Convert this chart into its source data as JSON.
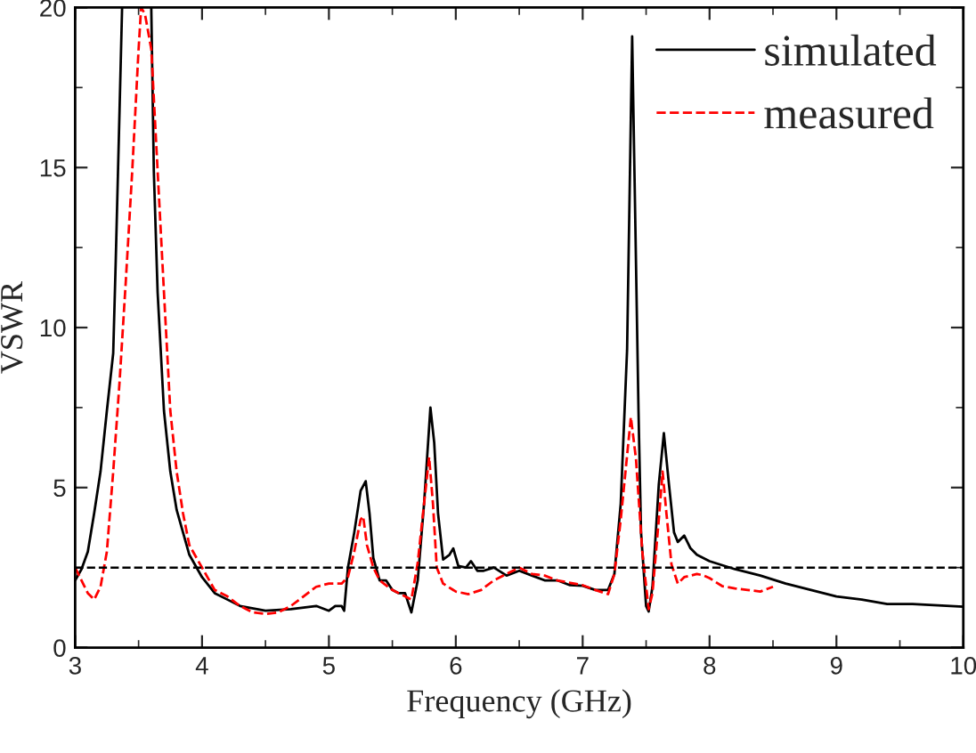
{
  "chart_data": {
    "type": "line",
    "xlabel": "Frequency (GHz)",
    "ylabel": "VSWR",
    "xlim": [
      3,
      10
    ],
    "ylim": [
      0,
      20
    ],
    "xticks": [
      3,
      4,
      5,
      6,
      7,
      8,
      9,
      10
    ],
    "yticks": [
      0,
      5,
      10,
      15,
      20
    ],
    "legend": "top right",
    "grid": false,
    "ref_lines": [
      {
        "axis": "y",
        "value": 2.5,
        "color": "#000000",
        "line_style": "dashed"
      }
    ],
    "series": [
      {
        "name": "simulated",
        "color": "#000000",
        "line_style": "solid",
        "x": [
          3.0,
          3.05,
          3.1,
          3.15,
          3.2,
          3.25,
          3.3,
          3.32,
          3.35,
          3.37,
          3.5,
          3.6,
          3.62,
          3.65,
          3.7,
          3.75,
          3.8,
          3.85,
          3.9,
          4.0,
          4.1,
          4.2,
          4.3,
          4.5,
          4.7,
          4.9,
          5.0,
          5.05,
          5.1,
          5.12,
          5.15,
          5.2,
          5.25,
          5.29,
          5.32,
          5.35,
          5.4,
          5.45,
          5.5,
          5.55,
          5.6,
          5.65,
          5.7,
          5.75,
          5.8,
          5.83,
          5.86,
          5.9,
          5.95,
          5.98,
          6.02,
          6.08,
          6.12,
          6.17,
          6.22,
          6.3,
          6.4,
          6.5,
          6.6,
          6.7,
          6.8,
          6.9,
          7.0,
          7.1,
          7.2,
          7.25,
          7.3,
          7.35,
          7.39,
          7.44,
          7.46,
          7.5,
          7.52,
          7.55,
          7.6,
          7.64,
          7.68,
          7.72,
          7.75,
          7.8,
          7.85,
          7.9,
          8.0,
          8.2,
          8.4,
          8.6,
          8.8,
          9.0,
          9.2,
          9.4,
          9.6,
          9.8,
          10.0
        ],
        "values": [
          2.1,
          2.45,
          3.0,
          4.2,
          5.5,
          7.4,
          9.2,
          12.1,
          16.8,
          20,
          null,
          20,
          14.9,
          11.1,
          7.4,
          5.5,
          4.3,
          3.6,
          2.9,
          2.2,
          1.7,
          1.5,
          1.3,
          1.15,
          1.2,
          1.3,
          1.15,
          1.3,
          1.3,
          1.15,
          2.5,
          3.6,
          4.9,
          5.2,
          4.2,
          2.8,
          2.1,
          2.1,
          1.8,
          1.7,
          1.7,
          1.1,
          2.1,
          4.5,
          7.5,
          6.4,
          4.2,
          2.75,
          2.9,
          3.1,
          2.55,
          2.5,
          2.7,
          2.4,
          2.4,
          2.5,
          2.25,
          2.4,
          2.25,
          2.1,
          2.1,
          1.95,
          1.93,
          1.8,
          1.8,
          2.3,
          4.5,
          9.3,
          19.1,
          7.4,
          3.6,
          1.3,
          1.13,
          1.9,
          5.1,
          6.7,
          5.1,
          3.6,
          3.3,
          3.5,
          3.1,
          2.9,
          2.7,
          2.45,
          2.25,
          2.0,
          1.8,
          1.6,
          1.5,
          1.36,
          1.36,
          1.32,
          1.28
        ]
      },
      {
        "name": "measured",
        "color": "#ff0000",
        "line_style": "dashed",
        "x": [
          3.0,
          3.05,
          3.1,
          3.15,
          3.2,
          3.25,
          3.3,
          3.35,
          3.4,
          3.45,
          3.5,
          3.52,
          3.55,
          3.6,
          3.65,
          3.7,
          3.75,
          3.8,
          3.85,
          3.9,
          4.0,
          4.1,
          4.2,
          4.3,
          4.4,
          4.5,
          4.6,
          4.7,
          4.8,
          4.9,
          5.0,
          5.1,
          5.15,
          5.2,
          5.25,
          5.27,
          5.3,
          5.35,
          5.4,
          5.5,
          5.6,
          5.65,
          5.7,
          5.75,
          5.79,
          5.82,
          5.85,
          5.9,
          6.0,
          6.1,
          6.2,
          6.3,
          6.4,
          6.5,
          6.6,
          6.7,
          6.8,
          7.0,
          7.1,
          7.2,
          7.25,
          7.3,
          7.38,
          7.42,
          7.47,
          7.52,
          7.55,
          7.6,
          7.63,
          7.66,
          7.7,
          7.75,
          7.8,
          7.9,
          7.95,
          8.0,
          8.1,
          8.2,
          8.3,
          8.4,
          8.5
        ],
        "values": [
          2.5,
          2.1,
          1.7,
          1.5,
          1.9,
          3.0,
          5.5,
          8.3,
          11.5,
          14.9,
          18.7,
          20,
          19.8,
          18.7,
          14.9,
          11.1,
          7.4,
          5.5,
          4.2,
          3.2,
          2.5,
          1.8,
          1.6,
          1.3,
          1.1,
          1.05,
          1.1,
          1.3,
          1.6,
          1.9,
          2.0,
          2.0,
          2.2,
          3.0,
          4.0,
          4.1,
          3.2,
          2.5,
          2.1,
          1.8,
          1.6,
          1.5,
          2.65,
          4.5,
          5.95,
          4.5,
          2.5,
          2.0,
          1.75,
          1.67,
          1.8,
          2.1,
          2.3,
          2.5,
          2.3,
          2.25,
          2.1,
          1.95,
          1.8,
          1.67,
          2.3,
          4.0,
          7.2,
          5.9,
          3.0,
          1.2,
          1.7,
          4.0,
          5.5,
          4.2,
          2.6,
          2.0,
          2.2,
          2.3,
          2.26,
          2.17,
          1.92,
          1.85,
          1.8,
          1.75,
          1.9
        ]
      }
    ]
  }
}
